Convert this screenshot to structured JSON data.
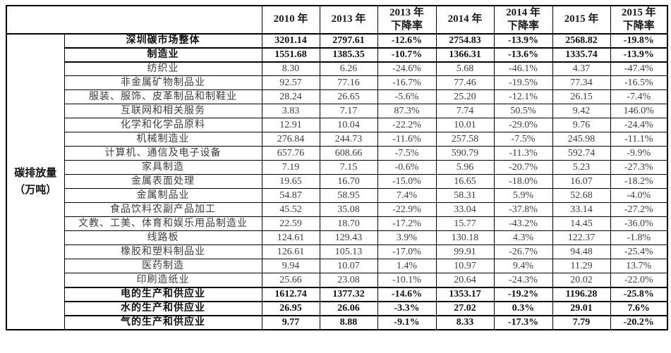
{
  "table": {
    "unit_label": "碳排放量\n（万吨）",
    "corner_label": "",
    "columns": [
      "2010 年",
      "2013 年",
      "2013 年\n下降率",
      "2014 年",
      "2014 年\n下降率",
      "2015 年",
      "2015 年\n下降率"
    ],
    "rows": [
      {
        "label": "深圳碳市场整体",
        "bold": true,
        "values": [
          "3201.14",
          "2797.61",
          "-12.6%",
          "2754.83",
          "-13.9%",
          "2568.82",
          "-19.8%"
        ]
      },
      {
        "label": "制造业",
        "bold": true,
        "values": [
          "1551.68",
          "1385.35",
          "-10.7%",
          "1366.31",
          "-13.6%",
          "1335.74",
          "-13.9%"
        ]
      },
      {
        "label": "纺织业",
        "bold": false,
        "values": [
          "8.30",
          "6.26",
          "-24.6%",
          "5.68",
          "-46.1%",
          "4.37",
          "-47.4%"
        ]
      },
      {
        "label": "非金属矿物制品业",
        "bold": false,
        "values": [
          "92.57",
          "77.16",
          "-16.7%",
          "77.46",
          "-19.5%",
          "77.34",
          "-16.5%"
        ]
      },
      {
        "label": "服装、服饰、皮革制品和制鞋业",
        "bold": false,
        "values": [
          "28.24",
          "26.65",
          "-5.6%",
          "25.20",
          "-12.1%",
          "26.15",
          "-7.4%"
        ]
      },
      {
        "label": "互联网和相关服务",
        "bold": false,
        "values": [
          "3.83",
          "7.17",
          "87.3%",
          "7.74",
          "50.5%",
          "9.42",
          "146.0%"
        ]
      },
      {
        "label": "化学和化学品原料",
        "bold": false,
        "values": [
          "12.91",
          "10.04",
          "-22.2%",
          "10.01",
          "-29.0%",
          "9.76",
          "-24.4%"
        ]
      },
      {
        "label": "机械制造业",
        "bold": false,
        "values": [
          "276.84",
          "244.73",
          "-11.6%",
          "257.58",
          "-7.5%",
          "245.98",
          "-11.1%"
        ]
      },
      {
        "label": "计算机、通信及电子设备",
        "bold": false,
        "values": [
          "657.76",
          "608.66",
          "-7.5%",
          "590.79",
          "-11.3%",
          "592.74",
          "-9.9%"
        ]
      },
      {
        "label": "家具制造",
        "bold": false,
        "values": [
          "7.19",
          "7.15",
          "-0.6%",
          "5.96",
          "-20.7%",
          "5.23",
          "-27.3%"
        ]
      },
      {
        "label": "金属表面处理",
        "bold": false,
        "values": [
          "19.65",
          "16.70",
          "-15.0%",
          "16.65",
          "-18.0%",
          "16.07",
          "-18.2%"
        ]
      },
      {
        "label": "金属制品业",
        "bold": false,
        "values": [
          "54.87",
          "58.95",
          "7.4%",
          "58.31",
          "5.9%",
          "52.68",
          "-4.0%"
        ]
      },
      {
        "label": "食品饮料农副产品加工",
        "bold": false,
        "values": [
          "45.52",
          "35.08",
          "-22.9%",
          "33.04",
          "-37.8%",
          "33.14",
          "-27.2%"
        ]
      },
      {
        "label": "文教、工美、体育和娱乐用品制造业",
        "bold": false,
        "values": [
          "22.59",
          "18.70",
          "-17.2%",
          "15.77",
          "-43.2%",
          "14.45",
          "-36.0%"
        ]
      },
      {
        "label": "线路板",
        "bold": false,
        "values": [
          "124.61",
          "129.43",
          "3.9%",
          "130.18",
          "4.3%",
          "122.37",
          "-1.8%"
        ]
      },
      {
        "label": "橡胶和塑料制品业",
        "bold": false,
        "values": [
          "126.61",
          "105.13",
          "-17.0%",
          "99.91",
          "-26.7%",
          "94.48",
          "-25.4%"
        ]
      },
      {
        "label": "医药制造",
        "bold": false,
        "values": [
          "9.94",
          "10.07",
          "1.4%",
          "10.97",
          "9.4%",
          "11.29",
          "13.7%"
        ]
      },
      {
        "label": "印刷造纸业",
        "bold": false,
        "values": [
          "25.66",
          "23.08",
          "-10.1%",
          "20.64",
          "-24.3%",
          "20.02",
          "-22.0%"
        ]
      },
      {
        "label": "电的生产和供应业",
        "bold": true,
        "values": [
          "1612.74",
          "1377.32",
          "-14.6%",
          "1353.17",
          "-19.2%",
          "1196.28",
          "-25.8%"
        ]
      },
      {
        "label": "水的生产和供应业",
        "bold": true,
        "values": [
          "26.95",
          "26.06",
          "-3.3%",
          "27.02",
          "0.3%",
          "29.01",
          "7.6%"
        ]
      },
      {
        "label": "气的生产和供应业",
        "bold": true,
        "values": [
          "9.77",
          "8.88",
          "-9.1%",
          "8.33",
          "-17.3%",
          "7.79",
          "-20.2%"
        ]
      }
    ],
    "colors": {
      "border": "#000000",
      "text": "#3d3d3d",
      "bold_text": "#111111",
      "background": "#ffffff"
    }
  }
}
